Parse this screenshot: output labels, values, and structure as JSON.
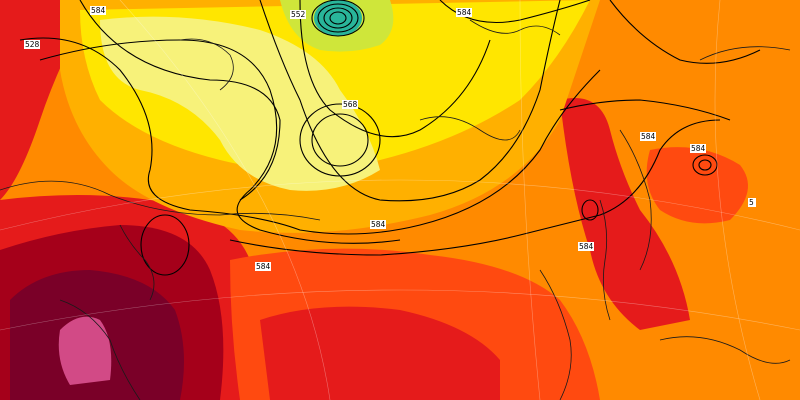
{
  "map": {
    "contour_labels": [
      "584",
      "584",
      "552",
      "584",
      "584",
      "584",
      "568",
      "528",
      "584",
      "584",
      "5"
    ],
    "colors": {
      "deep_magenta": "#7a0028",
      "pink": "#d24a86",
      "dark_red": "#a5001a",
      "red": "#e51b1b",
      "orange_red": "#ff4a10",
      "orange": "#ff8a00",
      "light_orange": "#ffb000",
      "yellow": "#ffe600",
      "light_yellow": "#f7f27a",
      "green_yellow": "#cfe63a",
      "teal": "#29b59a",
      "contour": "#000000",
      "coast": "#1a1a1a"
    }
  }
}
